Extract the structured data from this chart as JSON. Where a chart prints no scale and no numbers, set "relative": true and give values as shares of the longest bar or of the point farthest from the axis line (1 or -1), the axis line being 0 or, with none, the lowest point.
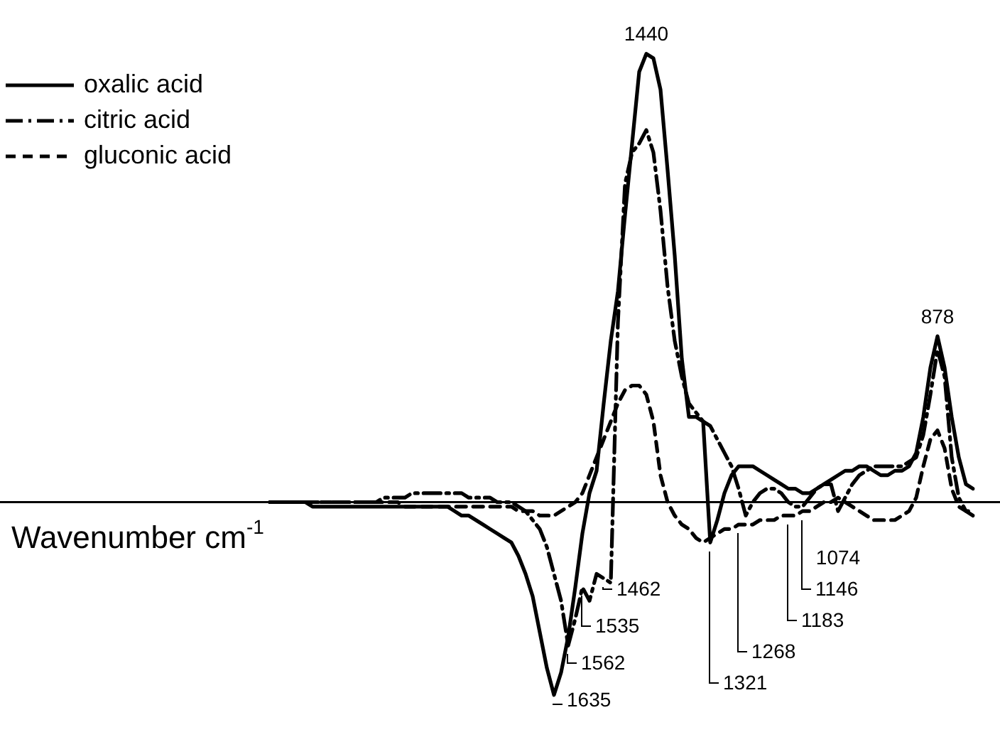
{
  "chart_data": {
    "type": "line",
    "xlabel": "Wavenumber cm$^{-1}$",
    "relative": true,
    "legend": "top left",
    "grid": false,
    "marker": "none",
    "categories": [
      null,
      null,
      null,
      null,
      null,
      null,
      null,
      null,
      null,
      null,
      null,
      null,
      null,
      null,
      null,
      null,
      null,
      null,
      null,
      null,
      null,
      null,
      null,
      null,
      null,
      null,
      null,
      null,
      null,
      null,
      null,
      null,
      null,
      null,
      null,
      null,
      null,
      null,
      null,
      null,
      null,
      null,
      null,
      null,
      null,
      null,
      null,
      null,
      null,
      null,
      null,
      null,
      null,
      null,
      null,
      null,
      null,
      null,
      null,
      null,
      null,
      null,
      null,
      null,
      null,
      null,
      null,
      null,
      null,
      null,
      null,
      null,
      null,
      null,
      null,
      null,
      null,
      null,
      null,
      null,
      null,
      null,
      null,
      null,
      null,
      null,
      null,
      null,
      null,
      null,
      null,
      null,
      null,
      null,
      null,
      null,
      null,
      null,
      null,
      null
    ],
    "series": [
      {
        "name": "oxalic acid",
        "color": "#000000",
        "line_style": "solid",
        "values": [
          0,
          0,
          0,
          0,
          0,
          0,
          -0.01,
          -0.01,
          -0.01,
          -0.01,
          -0.01,
          -0.01,
          -0.01,
          -0.01,
          -0.01,
          -0.01,
          -0.01,
          -0.01,
          -0.01,
          -0.01,
          -0.01,
          -0.01,
          -0.01,
          -0.01,
          -0.01,
          -0.01,
          -0.02,
          -0.03,
          -0.03,
          -0.04,
          -0.05,
          -0.06,
          -0.07,
          -0.08,
          -0.09,
          -0.12,
          -0.16,
          -0.21,
          -0.29,
          -0.37,
          -0.43,
          -0.38,
          -0.3,
          -0.19,
          -0.07,
          0.02,
          0.07,
          0.22,
          0.36,
          0.47,
          0.64,
          0.8,
          0.96,
          1,
          0.99,
          0.92,
          0.74,
          0.55,
          0.32,
          0.19,
          0.19,
          0.18,
          -0.09,
          -0.04,
          0.02,
          0.06,
          0.08,
          0.08,
          0.08,
          0.07,
          0.06,
          0.05,
          0.04,
          0.03,
          0.03,
          0.02,
          0.02,
          0.03,
          0.04,
          0.05,
          0.06,
          0.07,
          0.07,
          0.08,
          0.08,
          0.07,
          0.06,
          0.06,
          0.07,
          0.07,
          0.08,
          0.11,
          0.19,
          0.3,
          0.37,
          0.3,
          0.19,
          0.1,
          0.04,
          0.03
        ]
      },
      {
        "name": "citric acid",
        "color": "#000000",
        "line_style": "dashdot",
        "values": [
          0,
          0,
          0,
          0,
          0,
          0,
          0,
          0,
          0,
          0,
          0,
          0,
          0,
          0,
          0,
          0,
          0.01,
          0.01,
          0.01,
          0.01,
          0.02,
          0.02,
          0.02,
          0.02,
          0.02,
          0.02,
          0.02,
          0.02,
          0.01,
          0.01,
          0.01,
          0.01,
          0,
          0,
          0,
          -0.01,
          -0.02,
          -0.04,
          -0.06,
          -0.1,
          -0.16,
          -0.22,
          -0.32,
          -0.26,
          -0.19,
          -0.22,
          -0.16,
          -0.17,
          -0.18,
          0.4,
          0.71,
          0.78,
          0.8,
          0.83,
          0.78,
          0.65,
          0.48,
          0.36,
          0.28,
          0.22,
          0.2,
          0.18,
          0.17,
          0.14,
          0.11,
          0.08,
          0.03,
          -0.03,
          0,
          0.02,
          0.03,
          0.03,
          0.02,
          0,
          -0.01,
          -0.01,
          0.01,
          0.03,
          0.04,
          0.04,
          -0.02,
          0.01,
          0.04,
          0.06,
          0.07,
          0.08,
          0.08,
          0.08,
          0.08,
          0.08,
          0.09,
          0.1,
          0.15,
          0.24,
          0.34,
          0.28,
          0.1,
          0.01,
          -0.02,
          -0.03
        ]
      },
      {
        "name": "gluconic acid",
        "color": "#000000",
        "line_style": "dashed",
        "values": [
          0,
          0,
          0,
          0,
          0,
          0,
          0,
          0,
          0,
          0,
          0,
          0,
          0,
          0,
          0,
          0,
          0,
          0,
          0,
          -0.01,
          -0.01,
          -0.01,
          -0.01,
          -0.01,
          -0.01,
          -0.01,
          -0.01,
          -0.01,
          -0.01,
          -0.01,
          -0.01,
          -0.01,
          -0.01,
          -0.01,
          -0.01,
          -0.02,
          -0.02,
          -0.02,
          -0.03,
          -0.03,
          -0.03,
          -0.02,
          -0.01,
          0,
          0.02,
          0.06,
          0.1,
          0.14,
          0.18,
          0.22,
          0.25,
          0.26,
          0.26,
          0.24,
          0.18,
          0.06,
          0,
          -0.03,
          -0.05,
          -0.06,
          -0.08,
          -0.09,
          -0.08,
          -0.07,
          -0.06,
          -0.06,
          -0.05,
          -0.05,
          -0.05,
          -0.04,
          -0.04,
          -0.04,
          -0.03,
          -0.03,
          -0.03,
          -0.02,
          -0.02,
          -0.01,
          0,
          0,
          0.01,
          0,
          -0.01,
          -0.02,
          -0.03,
          -0.04,
          -0.04,
          -0.04,
          -0.04,
          -0.03,
          -0.02,
          0.01,
          0.08,
          0.14,
          0.16,
          0.12,
          0.03,
          -0.01,
          -0.02,
          -0.02
        ]
      }
    ],
    "annotations": [
      "1440",
      "878",
      "1074",
      "1146",
      "1183",
      "1268",
      "1321",
      "1462",
      "1535",
      "1562",
      "1635"
    ]
  }
}
